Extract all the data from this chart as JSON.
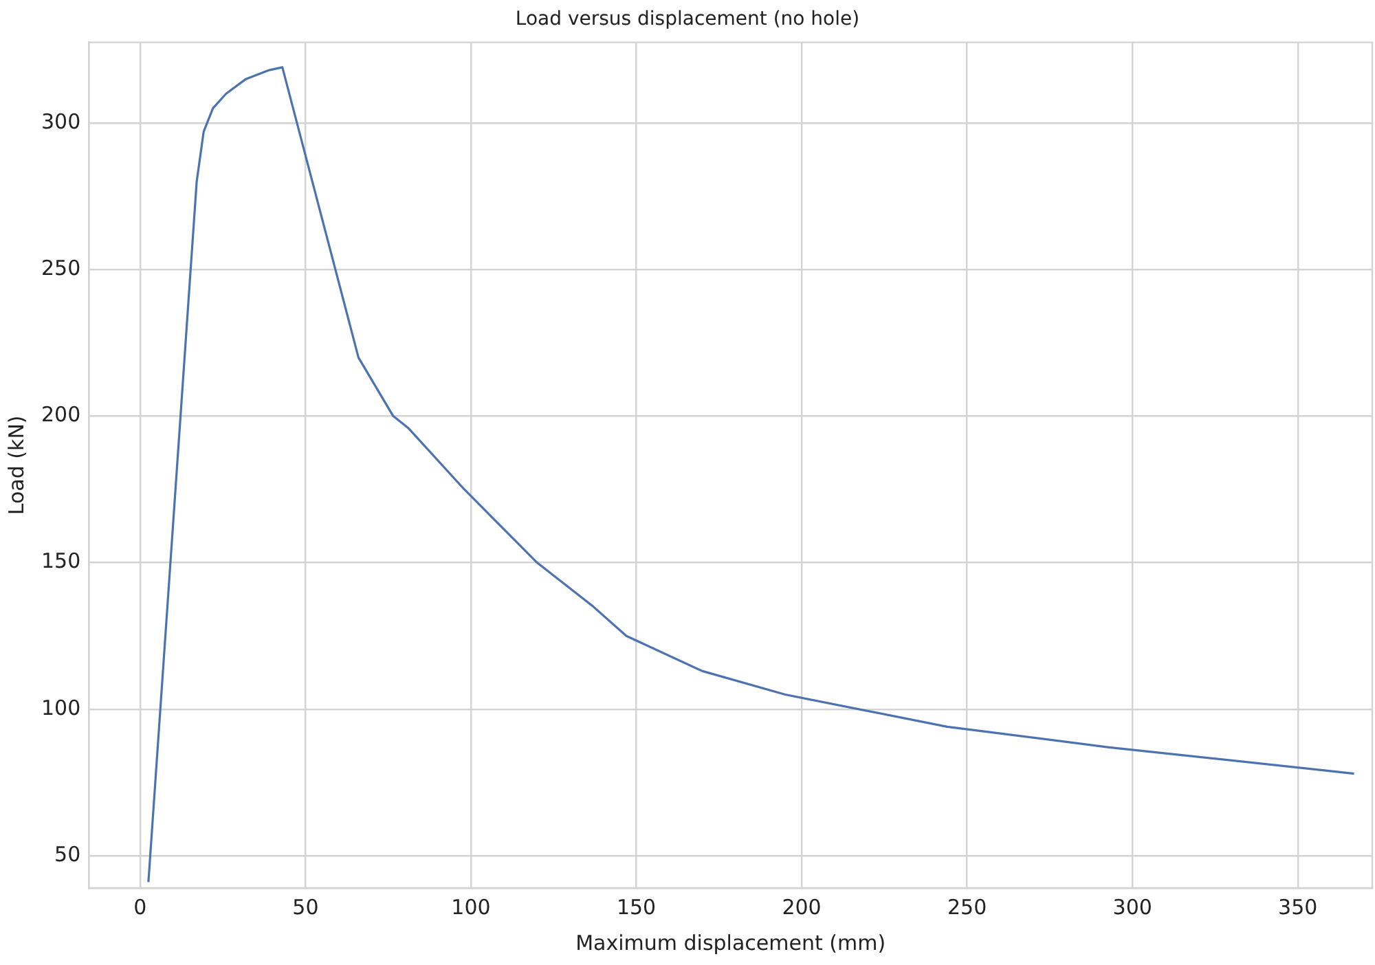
{
  "chart_data": {
    "type": "line",
    "title": "Load versus displacement (no hole)",
    "xlabel": "Maximum displacement (mm)",
    "ylabel": "Load (kN)",
    "x": [
      2.5,
      17.1,
      19.2,
      22,
      26,
      32,
      39,
      43,
      66,
      76.5,
      81,
      98,
      120,
      137,
      147,
      170,
      195,
      244,
      293,
      359,
      367
    ],
    "series": [
      {
        "color": "#4c72b0",
        "values": [
          41,
          280,
          297,
          305,
          310,
          315,
          318,
          319,
          220,
          200,
          196,
          175,
          150,
          135,
          125,
          113,
          105,
          94,
          87,
          79,
          78
        ]
      }
    ],
    "xlim": [
      -15.5,
      372.5
    ],
    "ylim": [
      39,
      327.5
    ],
    "xticks": [
      0,
      50,
      100,
      150,
      200,
      250,
      300,
      350
    ],
    "yticks": [
      50,
      100,
      150,
      200,
      250,
      300
    ],
    "grid": true,
    "legend": false,
    "marker": "none",
    "line_style": "solid"
  }
}
